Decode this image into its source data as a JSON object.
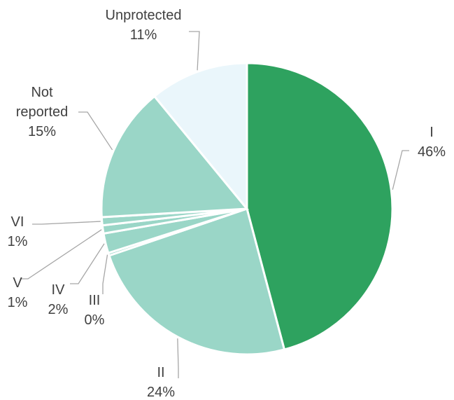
{
  "chart_data": {
    "type": "pie",
    "title": "",
    "slices": [
      {
        "label": "I",
        "pct_label": "46%",
        "value": 46,
        "color": "#2ea25f"
      },
      {
        "label": "II",
        "pct_label": "24%",
        "value": 24,
        "color": "#9ad6c7"
      },
      {
        "label": "III",
        "pct_label": "0%",
        "value": 0.3,
        "color": "#9ad6c7"
      },
      {
        "label": "IV",
        "pct_label": "2%",
        "value": 2.2,
        "color": "#9ad6c7"
      },
      {
        "label": "V",
        "pct_label": "1%",
        "value": 0.9,
        "color": "#9ad6c7"
      },
      {
        "label": "VI",
        "pct_label": "1%",
        "value": 0.9,
        "color": "#9ad6c7"
      },
      {
        "label": "Not reported",
        "pct_label": "15%",
        "value": 15,
        "color": "#9ad6c7"
      },
      {
        "label": "Unprotected",
        "pct_label": "11%",
        "value": 11,
        "color": "#eaf6fb"
      }
    ],
    "legend": "none (labels with leader lines)"
  }
}
